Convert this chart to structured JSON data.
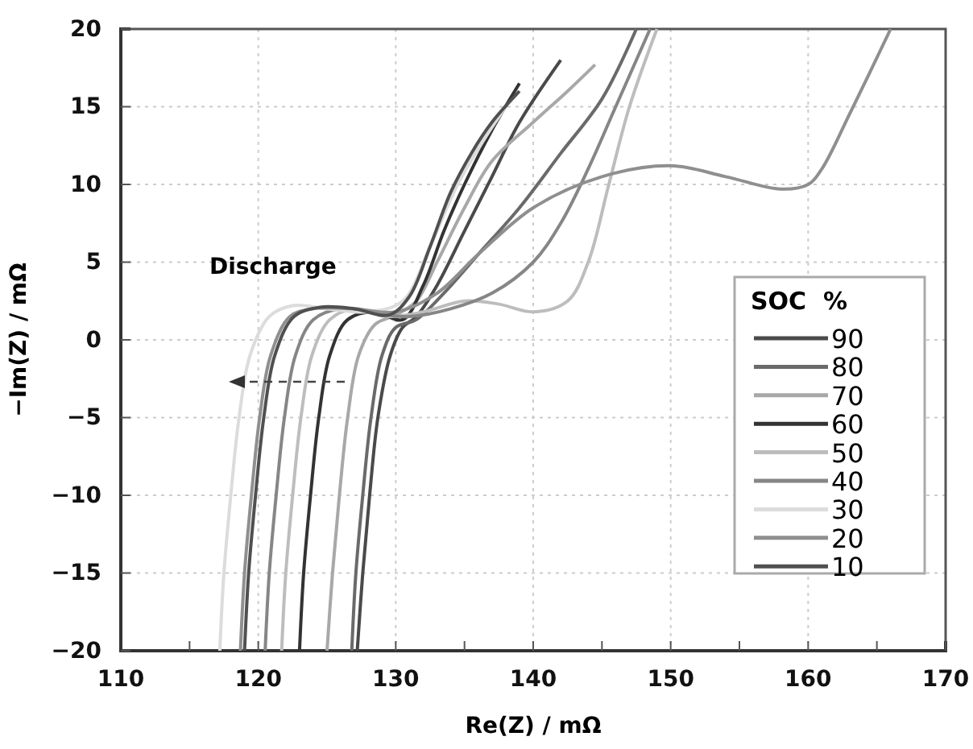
{
  "chart_data": {
    "type": "line",
    "xlabel": "Re(Z) / mΩ",
    "ylabel": "−Im(Z) / mΩ",
    "legend_title": "SOC  %",
    "annotations": [
      "Discharge"
    ],
    "xlim": [
      110,
      170
    ],
    "xticks": [
      110,
      {
        "value": 115,
        "label": null
      },
      120,
      {
        "value": 125,
        "label": null
      },
      130,
      {
        "value": 135,
        "label": null
      },
      140,
      {
        "value": 145,
        "label": null
      },
      150,
      {
        "value": 155,
        "label": null
      },
      160,
      {
        "value": 165,
        "label": null
      },
      170
    ],
    "ylim": [
      -20,
      20
    ],
    "yticks": [
      -20,
      -15,
      -10,
      -5,
      0,
      5,
      10,
      15,
      20
    ],
    "grid": true,
    "legend": "right",
    "line_style": "solid",
    "marker": "none",
    "series": [
      {
        "name": "90",
        "color": "#4a4a4a",
        "x": [
          127.2,
          127.6,
          128.1,
          128.7,
          129.6,
          130.5,
          131.5,
          133,
          135,
          137,
          139,
          142
        ],
        "values": [
          -20,
          -15,
          -10,
          -5,
          -1,
          0.8,
          1.5,
          3.5,
          7,
          10.5,
          14,
          18
        ]
      },
      {
        "name": "80",
        "color": "#6a6a6a",
        "x": [
          126.8,
          127.1,
          127.6,
          128.2,
          129,
          130,
          131.5,
          133.5,
          136,
          139,
          142,
          145,
          147.5
        ],
        "values": [
          -20,
          -15,
          -10,
          -5,
          -1,
          0.8,
          1.3,
          3,
          5.5,
          8.5,
          12,
          15.5,
          20
        ]
      },
      {
        "name": "70",
        "color": "#a8a8a8",
        "x": [
          125,
          125.4,
          125.9,
          126.5,
          127.3,
          128.5,
          130,
          131.5,
          133,
          135,
          137,
          140,
          142.5,
          144.5
        ],
        "values": [
          -20,
          -15,
          -10,
          -5,
          -1,
          1,
          1.6,
          2.5,
          5,
          8.5,
          11.5,
          14,
          16,
          17.7
        ]
      },
      {
        "name": "60",
        "color": "#333333",
        "x": [
          123,
          123.3,
          123.8,
          124.4,
          125.2,
          126.5,
          128.5,
          130.5,
          132,
          133.5,
          135,
          137,
          139
        ],
        "values": [
          -20,
          -15,
          -10,
          -5,
          -1,
          1.3,
          1.8,
          1.3,
          3.5,
          7,
          10,
          13.5,
          16.5
        ]
      },
      {
        "name": "50",
        "color": "#bdbdbd",
        "x": [
          121.7,
          122,
          122.5,
          123.1,
          123.9,
          125.2,
          127,
          129.5,
          132,
          135,
          137.5,
          140,
          142.5,
          144,
          145.5,
          147,
          149
        ],
        "values": [
          -20,
          -15,
          -10,
          -5,
          -1,
          1.3,
          2,
          1.5,
          1.8,
          2.5,
          2.3,
          1.8,
          2.5,
          5,
          10,
          15,
          20
        ]
      },
      {
        "name": "40",
        "color": "#868686",
        "x": [
          120.5,
          120.8,
          121.3,
          121.9,
          122.7,
          124,
          126,
          128.5,
          131,
          134,
          137,
          140,
          142,
          144,
          146,
          148.5
        ],
        "values": [
          -20,
          -15,
          -10,
          -5,
          -1,
          1.3,
          2,
          1.7,
          1.5,
          2,
          3,
          5,
          7.5,
          11,
          15,
          20
        ]
      },
      {
        "name": "30",
        "color": "#dcdcdc",
        "x": [
          117.2,
          117.5,
          118,
          118.6,
          119.4,
          120.8,
          122.5,
          125,
          128,
          130.5,
          132.5,
          134.5,
          136.5,
          138
        ],
        "values": [
          -20,
          -15,
          -10,
          -5,
          -1,
          1.5,
          2.2,
          2,
          1.8,
          2.5,
          6,
          10,
          13,
          15
        ]
      },
      {
        "name": "20",
        "color": "#8f8f8f",
        "x": [
          118.7,
          119,
          119.5,
          120.1,
          120.9,
          122.3,
          124,
          127,
          130,
          133,
          136,
          140,
          145,
          150,
          154,
          158,
          160,
          161,
          163,
          166
        ],
        "values": [
          -20,
          -15,
          -10,
          -5,
          -1,
          1.5,
          2,
          2,
          1.8,
          3,
          5.5,
          8.5,
          10.5,
          11.2,
          10.5,
          9.7,
          10,
          11,
          14.5,
          20
        ]
      },
      {
        "name": "10",
        "color": "#505050",
        "x": [
          119,
          119.3,
          119.8,
          120.4,
          121.2,
          122.6,
          124.5,
          127,
          129.5,
          131,
          132.5,
          134,
          135.5,
          137,
          139
        ],
        "values": [
          -20,
          -15,
          -10,
          -5,
          -1,
          1.5,
          2.1,
          2,
          1.6,
          2.8,
          6,
          9.5,
          12,
          14,
          16
        ]
      }
    ]
  }
}
